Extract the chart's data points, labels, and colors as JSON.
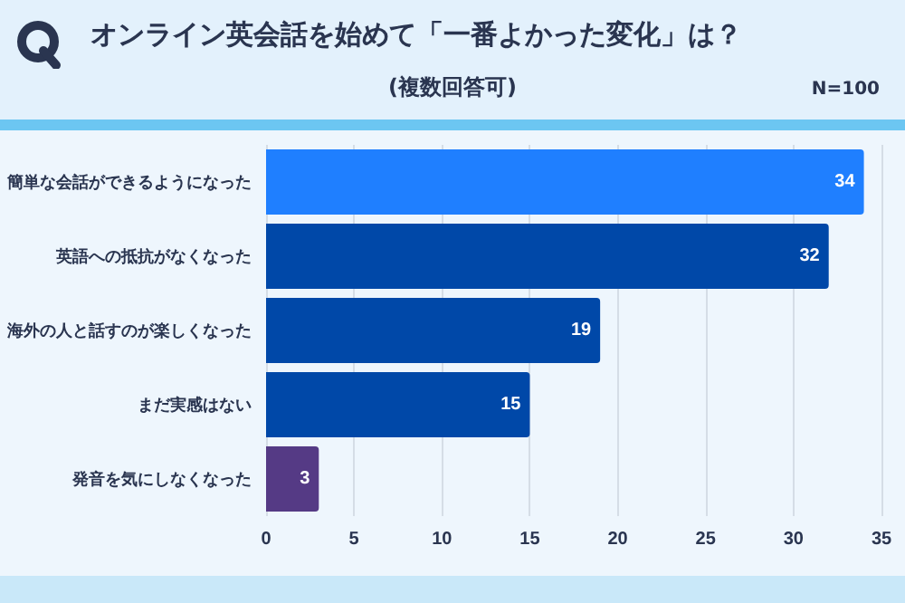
{
  "chart_data": {
    "type": "bar",
    "orientation": "horizontal",
    "title": "オンライン英会話を始めて「一番よかった変化」は？",
    "subtitle": "(複数回答可)",
    "annotations": [
      "N=100"
    ],
    "categories": [
      "簡単な会話ができるようになった",
      "英語への抵抗がなくなった",
      "海外の人と話すのが楽しくなった",
      "まだ実感はない",
      "発音を気にしなくなった"
    ],
    "values": [
      34,
      32,
      19,
      15,
      3
    ],
    "colors": [
      "#1f7fff",
      "#0048a8",
      "#0048a8",
      "#0048a8",
      "#553a85"
    ],
    "xlim": [
      0,
      35
    ],
    "xticks": [
      0,
      5,
      10,
      15,
      20,
      25,
      30,
      35
    ],
    "grid": "x",
    "data_labels": true
  }
}
